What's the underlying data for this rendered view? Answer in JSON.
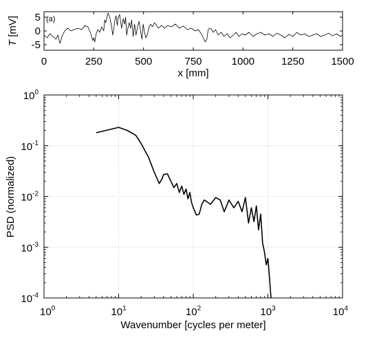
{
  "chart_data": [
    {
      "type": "line",
      "panel_label": "(a)",
      "xlabel": "x [mm]",
      "ylabel": "T [mV]",
      "ylabel_italic": "T",
      "ylabel_rest": " [mV]",
      "xlim": [
        0,
        1500
      ],
      "ylim": [
        -7,
        7
      ],
      "x_ticks": [
        0,
        250,
        500,
        750,
        1000,
        1250,
        1500
      ],
      "x_tick_labels": [
        "0",
        "250",
        "500",
        "750",
        "1000",
        "1250",
        "1500"
      ],
      "y_ticks": [
        5,
        0,
        -5
      ],
      "y_tick_labels": [
        "5",
        "0",
        "-5"
      ],
      "grid": false,
      "line_color": "#000000",
      "series": [
        {
          "x": [
            0,
            15,
            30,
            45,
            60,
            70,
            80,
            85,
            90,
            100,
            110,
            120,
            135,
            150,
            170,
            190,
            205,
            220,
            235,
            245,
            250,
            255,
            262,
            270,
            280,
            290,
            300,
            305,
            310,
            318,
            322,
            330,
            340,
            345,
            350,
            355,
            362,
            368,
            372,
            380,
            390,
            398,
            405,
            410,
            415,
            420,
            428,
            435,
            440,
            448,
            455,
            462,
            470,
            478,
            485,
            492,
            498,
            505,
            512,
            520,
            528,
            535,
            545,
            555,
            565,
            575,
            590,
            605,
            620,
            640,
            660,
            680,
            700,
            720,
            740,
            760,
            775,
            790,
            800,
            810,
            818,
            825,
            832,
            840,
            850,
            862,
            875,
            890,
            905,
            920,
            935,
            950,
            965,
            980,
            995,
            1010,
            1030,
            1050,
            1070,
            1090,
            1110,
            1130,
            1150,
            1170,
            1190,
            1210,
            1230,
            1250,
            1270,
            1290,
            1310,
            1330,
            1350,
            1370,
            1390,
            1410,
            1430,
            1450,
            1470,
            1490,
            1500
          ],
          "y": [
            -1.5,
            -2.5,
            -1.0,
            -2.0,
            -3.0,
            -1.5,
            -4.5,
            -3.5,
            -2.0,
            -0.5,
            0.5,
            1.0,
            0.0,
            0.5,
            1.0,
            0.5,
            2.0,
            1.5,
            -1.0,
            -3.5,
            -2.5,
            -4.0,
            -1.0,
            0.5,
            -0.5,
            1.5,
            0.0,
            4.0,
            3.0,
            5.5,
            6.5,
            5.0,
            1.5,
            -1.5,
            0.5,
            3.5,
            5.5,
            2.0,
            4.5,
            6.0,
            1.0,
            4.5,
            2.5,
            5.0,
            -1.5,
            0.5,
            3.0,
            1.0,
            4.0,
            -2.0,
            2.5,
            -1.5,
            1.5,
            3.5,
            0.0,
            -3.0,
            2.5,
            -0.5,
            -2.5,
            -1.0,
            1.5,
            2.5,
            1.5,
            3.0,
            2.0,
            1.0,
            2.0,
            1.0,
            2.0,
            1.5,
            2.5,
            1.0,
            1.8,
            0.5,
            1.0,
            0.0,
            0.5,
            -1.0,
            -2.5,
            -4.0,
            -3.0,
            0.5,
            1.0,
            0.8,
            -0.5,
            0.5,
            -1.5,
            -0.5,
            -2.0,
            -1.0,
            -2.5,
            -1.5,
            -0.5,
            -2.0,
            -1.0,
            -1.5,
            -0.5,
            -2.0,
            -1.0,
            -0.5,
            -1.5,
            -1.0,
            -2.0,
            -0.8,
            -1.5,
            -2.5,
            -1.2,
            -2.0,
            -0.5,
            -1.5,
            -1.0,
            -2.0,
            -1.5,
            -1.0,
            -2.0,
            -1.5,
            -0.8,
            -1.8,
            -1.0,
            -2.0,
            -1.5
          ]
        }
      ]
    },
    {
      "type": "line",
      "xlabel": "Wavenumber [cycles per meter]",
      "ylabel": "PSD (normalized)",
      "x_scale": "log",
      "y_scale": "log",
      "xlim": [
        1,
        10000
      ],
      "ylim": [
        0.0001,
        1
      ],
      "x_ticks": [
        1,
        10,
        100,
        1000,
        10000
      ],
      "x_tick_labels": [
        [
          "10",
          "0"
        ],
        [
          "10",
          "1"
        ],
        [
          "10",
          "2"
        ],
        [
          "10",
          "3"
        ],
        [
          "10",
          "4"
        ]
      ],
      "y_ticks": [
        1,
        0.1,
        0.01,
        0.001,
        0.0001
      ],
      "y_tick_labels": [
        [
          "10",
          "0"
        ],
        [
          "10",
          "-1"
        ],
        [
          "10",
          "-2"
        ],
        [
          "10",
          "-3"
        ],
        [
          "10",
          "-4"
        ]
      ],
      "grid": true,
      "grid_color": "#c8c8c8",
      "line_color": "#000000",
      "series": [
        {
          "x": [
            5,
            10,
            13,
            17,
            20,
            25,
            30,
            35,
            38,
            40,
            45,
            50,
            55,
            60,
            65,
            70,
            75,
            80,
            85,
            90,
            95,
            100,
            110,
            120,
            130,
            140,
            150,
            170,
            200,
            230,
            260,
            300,
            350,
            400,
            450,
            500,
            550,
            600,
            650,
            700,
            750,
            800,
            850,
            900,
            950,
            1000,
            1050,
            1100
          ],
          "y": [
            0.18,
            0.23,
            0.2,
            0.16,
            0.11,
            0.06,
            0.03,
            0.018,
            0.022,
            0.027,
            0.028,
            0.02,
            0.015,
            0.018,
            0.012,
            0.016,
            0.011,
            0.014,
            0.009,
            0.012,
            0.0075,
            0.006,
            0.0043,
            0.0045,
            0.007,
            0.0085,
            0.008,
            0.007,
            0.0095,
            0.0085,
            0.005,
            0.0085,
            0.006,
            0.008,
            0.005,
            0.0095,
            0.003,
            0.006,
            0.0032,
            0.0065,
            0.0022,
            0.0045,
            0.0012,
            0.0008,
            0.00045,
            0.0006,
            0.00025,
            0.0001
          ]
        }
      ]
    }
  ]
}
